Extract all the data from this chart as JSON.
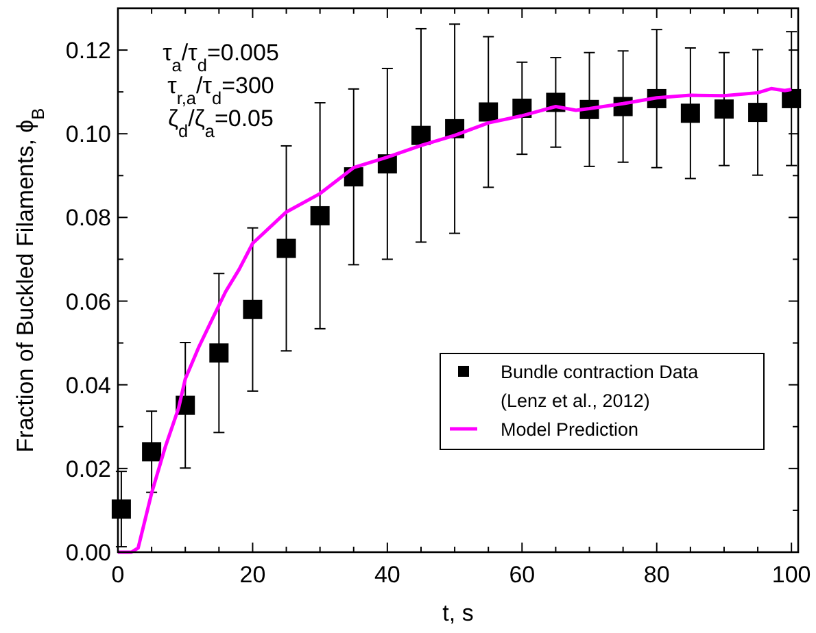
{
  "chart_data": {
    "type": "scatter",
    "xlabel": "t, s",
    "ylabel": "Fraction of Buckled Filaments, ϕ$_{B}$",
    "annotations": [
      "τ$_{a}$/τ$_{d}$=0.005",
      "τ$_{r,a}$/τ$_{d}$=300",
      "ζ$_{d}$/ζ$_{a}$=0.05"
    ],
    "xlim": [
      0,
      101
    ],
    "ylim": [
      0,
      0.13
    ],
    "xticks": [
      0,
      {
        "value": 5,
        "label": null
      },
      {
        "value": 10,
        "label": null
      },
      {
        "value": 15,
        "label": null
      },
      20,
      {
        "value": 25,
        "label": null
      },
      {
        "value": 30,
        "label": null
      },
      {
        "value": 35,
        "label": null
      },
      40,
      {
        "value": 45,
        "label": null
      },
      {
        "value": 50,
        "label": null
      },
      {
        "value": 55,
        "label": null
      },
      60,
      {
        "value": 65,
        "label": null
      },
      {
        "value": 70,
        "label": null
      },
      {
        "value": 75,
        "label": null
      },
      80,
      {
        "value": 85,
        "label": null
      },
      {
        "value": 90,
        "label": null
      },
      {
        "value": 95,
        "label": null
      },
      100
    ],
    "yticks": [
      {
        "value": 0,
        "label": "0.00"
      },
      {
        "value": 0.01,
        "label": null
      },
      {
        "value": 0.02,
        "label": "0.02"
      },
      {
        "value": 0.03,
        "label": null
      },
      {
        "value": 0.04,
        "label": "0.04"
      },
      {
        "value": 0.05,
        "label": null
      },
      {
        "value": 0.06,
        "label": "0.06"
      },
      {
        "value": 0.07,
        "label": null
      },
      {
        "value": 0.08,
        "label": "0.08"
      },
      {
        "value": 0.09,
        "label": null
      },
      {
        "value": 0.1,
        "label": "0.10"
      },
      {
        "value": 0.11,
        "label": null
      },
      {
        "value": 0.12,
        "label": "0.12"
      }
    ],
    "grid": false,
    "legend": "bottom right",
    "series": [
      {
        "name": "Bundle contraction Data (Lenz et al., 2012)",
        "marker": "square",
        "color": "#000000",
        "x": [
          0.5,
          5,
          10,
          15,
          20,
          25,
          30,
          35,
          40,
          45,
          50,
          55,
          60,
          65,
          70,
          75,
          80,
          85,
          90,
          95,
          100
        ],
        "values": [
          0.0103,
          0.024,
          0.0351,
          0.0476,
          0.058,
          0.0726,
          0.0804,
          0.0897,
          0.0928,
          0.0996,
          0.1012,
          0.1052,
          0.1061,
          0.1075,
          0.1058,
          0.1065,
          0.1084,
          0.1049,
          0.1059,
          0.1051,
          0.1084
        ],
        "errors": [
          0.009,
          0.0097,
          0.015,
          0.019,
          0.0195,
          0.0245,
          0.027,
          0.021,
          0.0228,
          0.0255,
          0.025,
          0.018,
          0.011,
          0.0107,
          0.0136,
          0.0133,
          0.0165,
          0.0156,
          0.0135,
          0.015,
          0.016
        ]
      },
      {
        "name": "Model Prediction",
        "type": "line",
        "marker": "none",
        "line_style": "solid",
        "color": "#ff00ff",
        "x": [
          0,
          2,
          3,
          5,
          7,
          9,
          10,
          12,
          14,
          16,
          18,
          20,
          25,
          30,
          35,
          40,
          45,
          50,
          55,
          60,
          65,
          68,
          70,
          75,
          80,
          85,
          90,
          95,
          97,
          99,
          100
        ],
        "values": [
          0,
          0,
          0.001,
          0.0141,
          0.025,
          0.0344,
          0.0414,
          0.049,
          0.0557,
          0.0623,
          0.0676,
          0.0738,
          0.0813,
          0.0857,
          0.0919,
          0.0944,
          0.0972,
          0.0996,
          0.1026,
          0.1043,
          0.1065,
          0.1056,
          0.106,
          0.1072,
          0.1086,
          0.1092,
          0.1091,
          0.1098,
          0.1108,
          0.1103,
          0.1106
        ]
      }
    ]
  }
}
